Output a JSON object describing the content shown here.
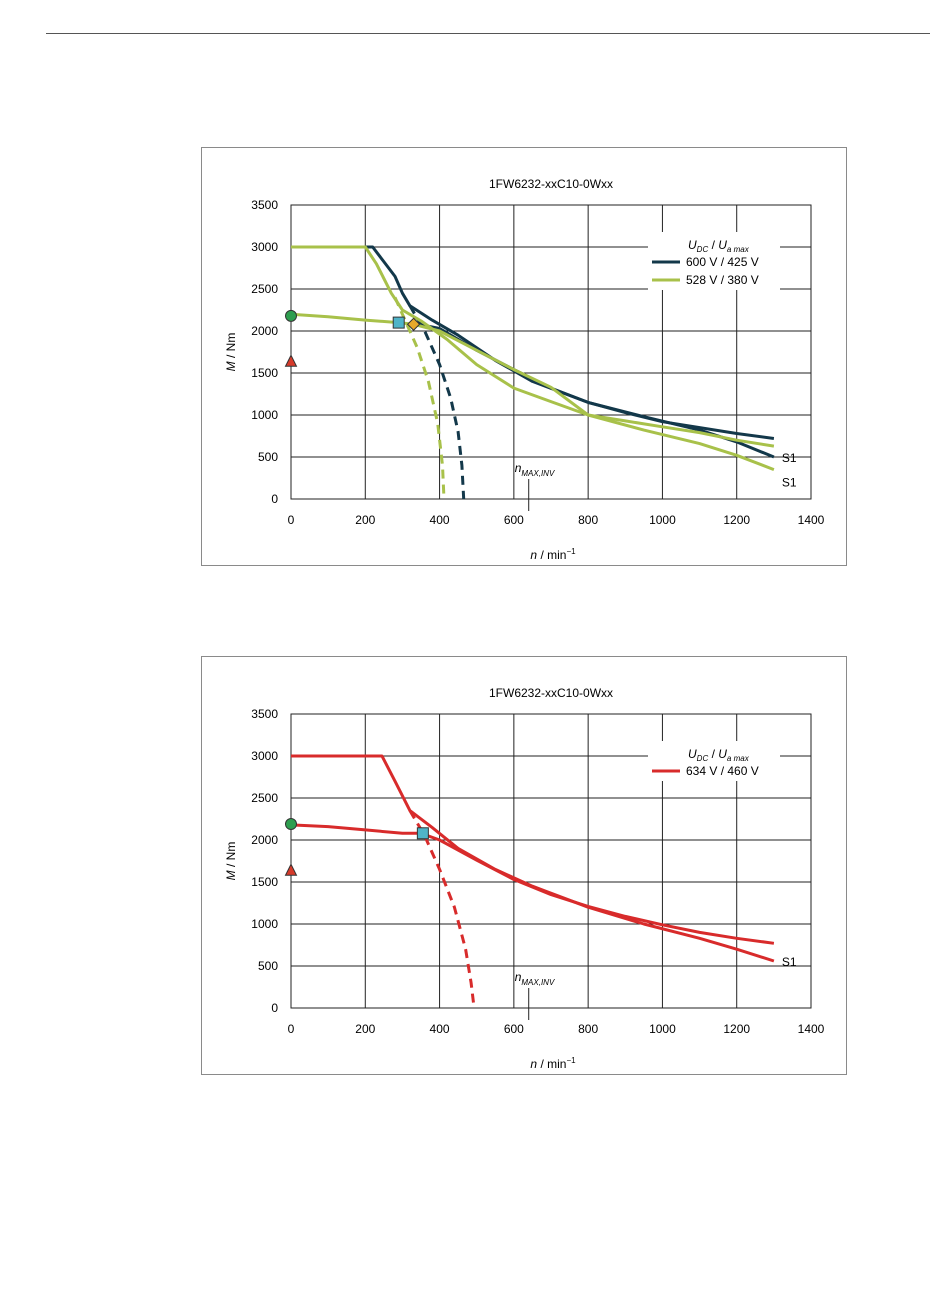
{
  "chart_data": [
    {
      "type": "line",
      "title": "1FW6232-xxC10-0Wxx",
      "xlabel_var": "n",
      "xlabel_unit": "/ min",
      "xlabel_exp": "−1",
      "ylabel_var": "M",
      "ylabel_unit": "/ Nm",
      "xlim": [
        0,
        1400
      ],
      "ylim": [
        0,
        3500
      ],
      "xticks": [
        "0",
        "200",
        "400",
        "600",
        "800",
        "1000",
        "1200",
        "1400"
      ],
      "yticks": [
        "0",
        "500",
        "1000",
        "1500",
        "2000",
        "2500",
        "3000",
        "3500"
      ],
      "grid": true,
      "legend_position": "top-right",
      "legend_header_main1": "U",
      "legend_header_sub1": "DC",
      "legend_header_sep": "/",
      "legend_header_main2": "U",
      "legend_header_sub2": "a max",
      "annotation_nmax_main": "n",
      "annotation_nmax_sub": "MAX,INV",
      "nmax_value": 640,
      "series": [
        {
          "name": "600 V / 425 V",
          "color": "#13384a",
          "peak_curve": [
            [
              0,
              3000
            ],
            [
              220,
              3000
            ],
            [
              280,
              2650
            ],
            [
              300,
              2450
            ],
            [
              320,
              2300
            ],
            [
              380,
              2130
            ],
            [
              450,
              1950
            ],
            [
              550,
              1650
            ],
            [
              650,
              1400
            ],
            [
              800,
              1150
            ],
            [
              950,
              980
            ],
            [
              1100,
              820
            ],
            [
              1200,
              680
            ],
            [
              1300,
              500
            ]
          ],
          "continuous_curve": [
            [
              320,
              2100
            ],
            [
              400,
              2030
            ],
            [
              500,
              1770
            ],
            [
              600,
              1540
            ],
            [
              700,
              1320
            ],
            [
              800,
              1150
            ],
            [
              900,
              1030
            ],
            [
              1000,
              920
            ],
            [
              1100,
              850
            ],
            [
              1200,
              780
            ],
            [
              1300,
              720
            ]
          ],
          "voltage_limit_curve": [
            [
              320,
              2300
            ],
            [
              360,
              2000
            ],
            [
              400,
              1600
            ],
            [
              430,
              1200
            ],
            [
              450,
              800
            ],
            [
              460,
              400
            ],
            [
              465,
              0
            ]
          ],
          "continuous_label": "S1"
        },
        {
          "name": "528 V / 380 V",
          "color": "#a8c14a",
          "peak_curve": [
            [
              0,
              3000
            ],
            [
              200,
              3000
            ],
            [
              230,
              2800
            ],
            [
              270,
              2450
            ],
            [
              300,
              2250
            ],
            [
              350,
              2120
            ],
            [
              420,
              1900
            ],
            [
              500,
              1600
            ],
            [
              600,
              1320
            ],
            [
              700,
              1160
            ],
            [
              800,
              1000
            ],
            [
              950,
              820
            ],
            [
              1100,
              660
            ],
            [
              1200,
              520
            ],
            [
              1300,
              350
            ]
          ],
          "continuous_curve": [
            [
              0,
              2200
            ],
            [
              100,
              2170
            ],
            [
              200,
              2130
            ],
            [
              290,
              2100
            ],
            [
              330,
              2080
            ],
            [
              400,
              2000
            ],
            [
              500,
              1770
            ],
            [
              600,
              1540
            ],
            [
              700,
              1330
            ],
            [
              800,
              1000
            ],
            [
              900,
              930
            ],
            [
              1000,
              860
            ],
            [
              1100,
              790
            ],
            [
              1200,
              700
            ],
            [
              1300,
              630
            ]
          ],
          "voltage_limit_curve": [
            [
              280,
              2400
            ],
            [
              310,
              2100
            ],
            [
              340,
              1800
            ],
            [
              370,
              1400
            ],
            [
              395,
              900
            ],
            [
              408,
              400
            ],
            [
              412,
              0
            ]
          ],
          "continuous_label": "S1"
        }
      ],
      "markers": [
        {
          "shape": "circle",
          "x": 0,
          "y": 2180,
          "color": "#2e9e4f"
        },
        {
          "shape": "triangle",
          "x": 0,
          "y": 1640,
          "color": "#d63a2a"
        },
        {
          "shape": "square",
          "x": 290,
          "y": 2100,
          "color": "#4fb4c8"
        },
        {
          "shape": "diamond",
          "x": 330,
          "y": 2080,
          "color": "#e8a92a"
        }
      ]
    },
    {
      "type": "line",
      "title": "1FW6232-xxC10-0Wxx",
      "xlabel_var": "n",
      "xlabel_unit": "/ min",
      "xlabel_exp": "−1",
      "ylabel_var": "M",
      "ylabel_unit": "/ Nm",
      "xlim": [
        0,
        1400
      ],
      "ylim": [
        0,
        3500
      ],
      "xticks": [
        "0",
        "200",
        "400",
        "600",
        "800",
        "1000",
        "1200",
        "1400"
      ],
      "yticks": [
        "0",
        "500",
        "1000",
        "1500",
        "2000",
        "2500",
        "3000",
        "3500"
      ],
      "grid": true,
      "legend_position": "top-right",
      "legend_header_main1": "U",
      "legend_header_sub1": "DC",
      "legend_header_sep": "/",
      "legend_header_main2": "U",
      "legend_header_sub2": "a max",
      "annotation_nmax_main": "n",
      "annotation_nmax_sub": "MAX,INV",
      "nmax_value": 640,
      "series": [
        {
          "name": "634 V / 460 V",
          "color": "#d82b2b",
          "peak_curve": [
            [
              0,
              3000
            ],
            [
              245,
              3000
            ],
            [
              280,
              2700
            ],
            [
              320,
              2350
            ],
            [
              380,
              2150
            ],
            [
              450,
              1900
            ],
            [
              550,
              1650
            ],
            [
              650,
              1450
            ],
            [
              800,
              1200
            ],
            [
              950,
              1000
            ],
            [
              1100,
              830
            ],
            [
              1200,
              700
            ],
            [
              1300,
              560
            ]
          ],
          "continuous_curve": [
            [
              0,
              2180
            ],
            [
              100,
              2160
            ],
            [
              200,
              2120
            ],
            [
              300,
              2080
            ],
            [
              350,
              2080
            ],
            [
              400,
              2000
            ],
            [
              500,
              1760
            ],
            [
              600,
              1530
            ],
            [
              700,
              1350
            ],
            [
              800,
              1210
            ],
            [
              900,
              1090
            ],
            [
              1000,
              990
            ],
            [
              1100,
              900
            ],
            [
              1200,
              830
            ],
            [
              1300,
              770
            ]
          ],
          "voltage_limit_curve": [
            [
              320,
              2350
            ],
            [
              360,
              2050
            ],
            [
              400,
              1650
            ],
            [
              440,
              1200
            ],
            [
              470,
              700
            ],
            [
              485,
              300
            ],
            [
              493,
              0
            ]
          ],
          "continuous_label": "S1"
        }
      ],
      "markers": [
        {
          "shape": "circle",
          "x": 0,
          "y": 2190,
          "color": "#2e9e4f"
        },
        {
          "shape": "triangle",
          "x": 0,
          "y": 1640,
          "color": "#d63a2a"
        },
        {
          "shape": "square",
          "x": 355,
          "y": 2080,
          "color": "#4fb4c8"
        }
      ]
    }
  ]
}
